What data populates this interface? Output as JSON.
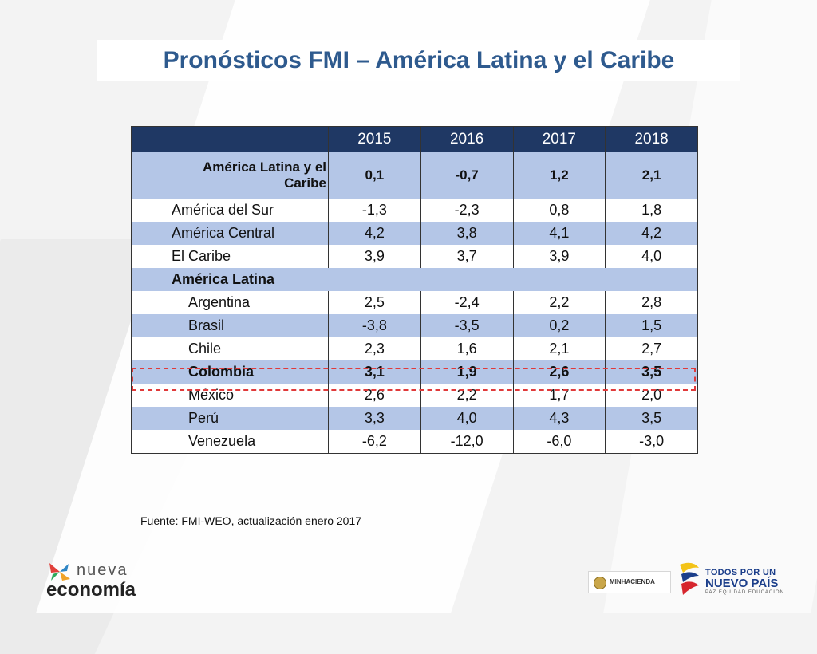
{
  "title": "Pronósticos FMI – América Latina y el Caribe",
  "table": {
    "years": [
      "2015",
      "2016",
      "2017",
      "2018"
    ],
    "region_row": {
      "name": "América Latina y el Caribe",
      "values": [
        "0,1",
        "-0,7",
        "1,2",
        "2,1"
      ]
    },
    "subregions": [
      {
        "name": "América del Sur",
        "values": [
          "-1,3",
          "-2,3",
          "0,8",
          "1,8"
        ]
      },
      {
        "name": "América Central",
        "values": [
          "4,2",
          "3,8",
          "4,1",
          "4,2"
        ]
      },
      {
        "name": "El Caribe",
        "values": [
          "3,9",
          "3,7",
          "3,9",
          "4,0"
        ]
      }
    ],
    "group_label": "América Latina",
    "countries": [
      {
        "name": "Argentina",
        "values": [
          "2,5",
          "-2,4",
          "2,2",
          "2,8"
        ]
      },
      {
        "name": "Brasil",
        "values": [
          "-3,8",
          "-3,5",
          "0,2",
          "1,5"
        ]
      },
      {
        "name": "Chile",
        "values": [
          "2,3",
          "1,6",
          "2,1",
          "2,7"
        ]
      },
      {
        "name": "Colombia",
        "values": [
          "3,1",
          "1,9",
          "2,6",
          "3,5"
        ]
      },
      {
        "name": "México",
        "values": [
          "2,6",
          "2,2",
          "1,7",
          "2,0"
        ]
      },
      {
        "name": "Perú",
        "values": [
          "3,3",
          "4,0",
          "4,3",
          "3,5"
        ]
      },
      {
        "name": "Venezuela",
        "values": [
          "-6,2",
          "-12,0",
          "-6,0",
          "-3,0"
        ]
      }
    ]
  },
  "source": "Fuente: FMI-WEO, actualización enero 2017",
  "logos": {
    "nueva_economia": {
      "top": "nueva",
      "bottom": "economía"
    },
    "minhacienda": "MINHACIENDA",
    "todos_por_un_nuevo_pais": {
      "line1": "TODOS POR UN",
      "line2": "NUEVO PAÍS",
      "line3": "PAZ  EQUIDAD  EDUCACIÓN"
    }
  },
  "colors": {
    "title": "#2e5a8e",
    "header_bg": "#1f3864",
    "band_bg": "#b4c6e7",
    "highlight_border": "#e03a3a"
  }
}
